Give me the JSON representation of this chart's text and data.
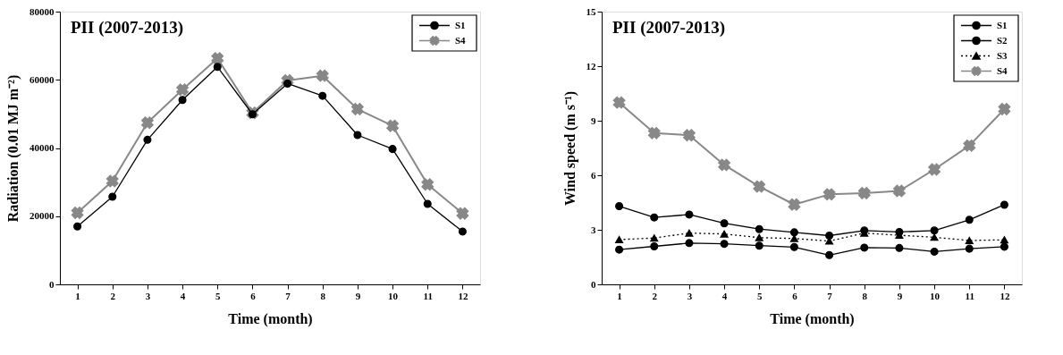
{
  "chart_data": [
    {
      "type": "line",
      "title": "PII (2007-2013)",
      "xlabel": "Time (month)",
      "ylabel": "Radiation (0.01 MJ m⁻²)",
      "x": [
        1,
        2,
        3,
        4,
        5,
        6,
        7,
        8,
        9,
        10,
        11,
        12
      ],
      "xlim": [
        0.5,
        12.5
      ],
      "xticks": [
        1,
        2,
        3,
        4,
        5,
        6,
        7,
        8,
        9,
        10,
        11,
        12
      ],
      "ylim": [
        0,
        80000
      ],
      "yticks": [
        0,
        20000,
        40000,
        60000,
        80000
      ],
      "grid": false,
      "legend": "top right",
      "series": [
        {
          "name": "S1",
          "color": "#000000",
          "marker": "circle",
          "line_style": "solid",
          "values": [
            17000,
            25700,
            42400,
            54100,
            63800,
            49900,
            58900,
            55300,
            43800,
            39700,
            23600,
            15500
          ]
        },
        {
          "name": "S4",
          "color": "#888888",
          "marker": "cross",
          "line_style": "solid",
          "values": [
            21000,
            30300,
            47400,
            57100,
            66300,
            50300,
            59800,
            61200,
            51400,
            46500,
            29300,
            20800
          ]
        }
      ]
    },
    {
      "type": "line",
      "title": "PII (2007-2013)",
      "xlabel": "Time (month)",
      "ylabel": "Wind speed (m s⁻¹)",
      "x": [
        1,
        2,
        3,
        4,
        5,
        6,
        7,
        8,
        9,
        10,
        11,
        12
      ],
      "xlim": [
        0.5,
        12.5
      ],
      "xticks": [
        1,
        2,
        3,
        4,
        5,
        6,
        7,
        8,
        9,
        10,
        11,
        12
      ],
      "ylim": [
        0,
        15
      ],
      "yticks": [
        0,
        3,
        6,
        9,
        12,
        15
      ],
      "grid": false,
      "legend": "top right",
      "series": [
        {
          "name": "S1",
          "color": "#000000",
          "marker": "circle",
          "line_style": "solid",
          "values": [
            4.3,
            3.68,
            3.84,
            3.36,
            3.04,
            2.86,
            2.68,
            2.96,
            2.88,
            2.96,
            3.55,
            4.38
          ]
        },
        {
          "name": "S2",
          "color": "#000000",
          "marker": "circle",
          "line_style": "solid",
          "values": [
            1.91,
            2.09,
            2.27,
            2.23,
            2.13,
            2.05,
            1.61,
            2.02,
            2.0,
            1.8,
            1.96,
            2.07
          ]
        },
        {
          "name": "S3",
          "color": "#000000",
          "marker": "triangle",
          "line_style": "dotted",
          "values": [
            2.46,
            2.55,
            2.82,
            2.77,
            2.57,
            2.52,
            2.38,
            2.82,
            2.7,
            2.59,
            2.41,
            2.45
          ]
        },
        {
          "name": "S4",
          "color": "#888888",
          "marker": "cross",
          "line_style": "solid",
          "values": [
            10.0,
            8.32,
            8.2,
            6.57,
            5.38,
            4.39,
            4.95,
            5.02,
            5.14,
            6.32,
            7.63,
            9.64
          ]
        }
      ]
    }
  ]
}
